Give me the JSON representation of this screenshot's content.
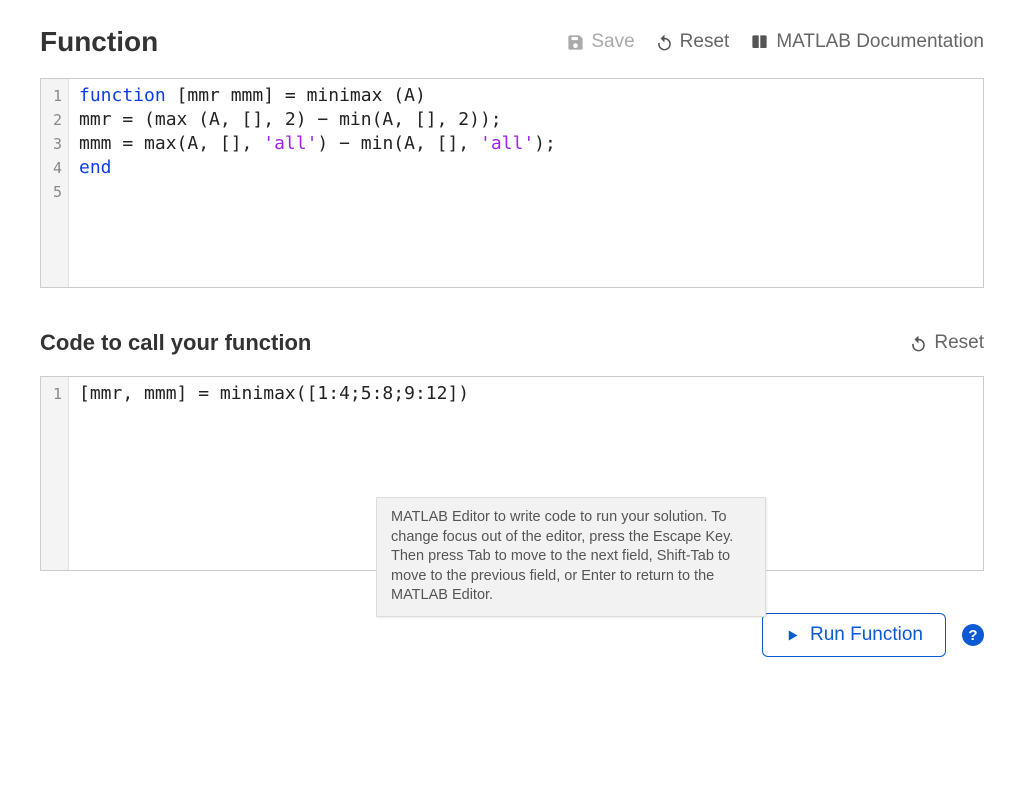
{
  "section1": {
    "title": "Function",
    "toolbar": {
      "save_label": "Save",
      "reset_label": "Reset",
      "docs_label": "MATLAB Documentation"
    },
    "code": {
      "line_numbers": [
        "1",
        "2",
        "3",
        "4",
        "5"
      ],
      "lines": [
        {
          "segments": [
            {
              "t": "function",
              "cls": "kw"
            },
            {
              "t": " [mmr mmm] = minimax (A)",
              "cls": ""
            }
          ]
        },
        {
          "segments": [
            {
              "t": "mmr = (max (A, [], 2) − min(A, [], 2));",
              "cls": ""
            }
          ]
        },
        {
          "segments": [
            {
              "t": "mmm = max(A, [], ",
              "cls": ""
            },
            {
              "t": "'all'",
              "cls": "str"
            },
            {
              "t": ") − min(A, [], ",
              "cls": ""
            },
            {
              "t": "'all'",
              "cls": "str"
            },
            {
              "t": ");",
              "cls": ""
            }
          ]
        },
        {
          "segments": [
            {
              "t": "end",
              "cls": "kw"
            }
          ]
        },
        {
          "segments": [
            {
              "t": "",
              "cls": ""
            }
          ]
        }
      ]
    }
  },
  "section2": {
    "title": "Code to call your function",
    "toolbar": {
      "reset_label": "Reset"
    },
    "code": {
      "line_numbers": [
        "1"
      ],
      "lines": [
        {
          "segments": [
            {
              "t": "[mmr, mmm] = minimax([1:4;5:8;9:12])",
              "cls": ""
            }
          ]
        }
      ]
    },
    "tooltip": "MATLAB Editor to write code to run your solution. To change focus out of the editor, press the Escape Key. Then press Tab to move to the next field, Shift-Tab to move to the previous field, or Enter to return to the MATLAB Editor."
  },
  "run_button_label": "Run Function",
  "help_label": "?",
  "colors": {
    "keyword": "#0b3ee5",
    "string": "#a020f0",
    "text": "#222222",
    "gutter_bg": "#f4f4f4",
    "border": "#cccccc",
    "primary": "#0b5ad4",
    "tool_grey": "#666666",
    "tool_disabled": "#aaaaaa"
  }
}
